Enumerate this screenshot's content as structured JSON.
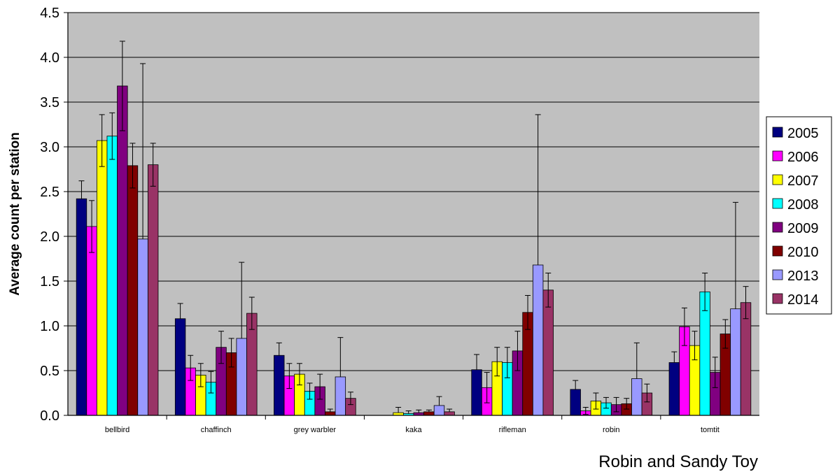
{
  "chart_data": {
    "type": "bar",
    "title": "",
    "xlabel": "",
    "ylabel": "Average count per station",
    "ylim": [
      0,
      4.5
    ],
    "y_ticks": [
      "0.0",
      "0.5",
      "1.0",
      "1.5",
      "2.0",
      "2.5",
      "3.0",
      "3.5",
      "4.0",
      "4.5"
    ],
    "grid": true,
    "legend_position": "right",
    "plot_background": "#c0c0c0",
    "categories": [
      "bellbird",
      "chaffinch",
      "grey warbler",
      "kaka",
      "rifleman",
      "robin",
      "tomtit"
    ],
    "series": [
      {
        "name": "2005",
        "color": "#000080",
        "values": [
          2.42,
          1.08,
          0.67,
          0,
          0.51,
          0.29,
          0.59
        ],
        "err_high": [
          2.62,
          1.25,
          0.81,
          0,
          0.68,
          0.39,
          0.71
        ],
        "err_low": [
          2.42,
          1.08,
          0.67,
          0,
          0.51,
          0.29,
          0.59
        ]
      },
      {
        "name": "2006",
        "color": "#ff00ff",
        "values": [
          2.11,
          0.53,
          0.44,
          0,
          0.31,
          0.05,
          0.99
        ],
        "err_high": [
          2.4,
          0.67,
          0.58,
          0,
          0.48,
          0.09,
          1.2
        ],
        "err_low": [
          1.82,
          0.39,
          0.3,
          0,
          0.14,
          0.01,
          0.78
        ]
      },
      {
        "name": "2007",
        "color": "#ffff00",
        "values": [
          3.07,
          0.45,
          0.46,
          0.03,
          0.6,
          0.16,
          0.78
        ],
        "err_high": [
          3.36,
          0.58,
          0.58,
          0.09,
          0.76,
          0.25,
          0.94
        ],
        "err_low": [
          2.78,
          0.32,
          0.34,
          0.03,
          0.44,
          0.07,
          0.62
        ]
      },
      {
        "name": "2008",
        "color": "#00ffff",
        "values": [
          3.12,
          0.37,
          0.27,
          0.02,
          0.59,
          0.14,
          1.38
        ],
        "err_high": [
          3.38,
          0.49,
          0.36,
          0.05,
          0.76,
          0.2,
          1.59
        ],
        "err_low": [
          2.86,
          0.25,
          0.18,
          0.02,
          0.42,
          0.08,
          1.17
        ]
      },
      {
        "name": "2009",
        "color": "#800080",
        "values": [
          3.68,
          0.76,
          0.32,
          0.03,
          0.72,
          0.12,
          0.48
        ],
        "err_high": [
          4.18,
          0.94,
          0.46,
          0.06,
          0.94,
          0.2,
          0.65
        ],
        "err_low": [
          3.18,
          0.58,
          0.18,
          0.03,
          0.5,
          0.04,
          0.31
        ]
      },
      {
        "name": "2010",
        "color": "#800000",
        "values": [
          2.79,
          0.7,
          0.04,
          0.04,
          1.15,
          0.13,
          0.91
        ],
        "err_high": [
          3.04,
          0.86,
          0.07,
          0.06,
          1.34,
          0.19,
          1.07
        ],
        "err_low": [
          2.54,
          0.54,
          0.04,
          0.04,
          0.96,
          0.07,
          0.75
        ]
      },
      {
        "name": "2013",
        "color": "#9999ff",
        "values": [
          1.97,
          0.86,
          0.43,
          0.11,
          1.68,
          0.41,
          1.19
        ],
        "err_high": [
          3.93,
          1.71,
          0.87,
          0.21,
          3.36,
          0.81,
          2.38
        ],
        "err_low": [
          1.97,
          0.86,
          0.43,
          0.11,
          1.68,
          0.41,
          1.19
        ]
      },
      {
        "name": "2014",
        "color": "#993366",
        "values": [
          2.8,
          1.14,
          0.19,
          0.04,
          1.4,
          0.25,
          1.26
        ],
        "err_high": [
          3.04,
          1.32,
          0.26,
          0.07,
          1.59,
          0.35,
          1.44
        ],
        "err_low": [
          2.56,
          0.96,
          0.12,
          0.04,
          1.21,
          0.15,
          1.08
        ]
      }
    ]
  },
  "credit": "Robin and Sandy Toy"
}
